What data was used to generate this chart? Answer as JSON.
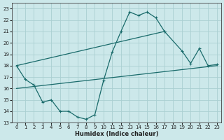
{
  "xlabel": "Humidex (Indice chaleur)",
  "bg_color": "#cce8ea",
  "grid_color": "#aacfd2",
  "line_color": "#1a6b6b",
  "xlim": [
    -0.5,
    23.5
  ],
  "ylim": [
    13,
    23.5
  ],
  "xticks": [
    0,
    1,
    2,
    3,
    4,
    5,
    6,
    7,
    8,
    9,
    10,
    11,
    12,
    13,
    14,
    15,
    16,
    17,
    18,
    19,
    20,
    21,
    22,
    23
  ],
  "yticks": [
    13,
    14,
    15,
    16,
    17,
    18,
    19,
    20,
    21,
    22,
    23
  ],
  "line1_x": [
    0,
    1,
    2,
    3,
    4,
    5,
    6,
    7,
    8,
    9,
    10,
    11,
    12,
    13,
    14,
    15,
    16,
    17
  ],
  "line1_y": [
    18.0,
    16.8,
    16.3,
    14.8,
    15.0,
    14.0,
    14.0,
    13.5,
    13.3,
    13.7,
    16.7,
    19.2,
    21.0,
    22.7,
    22.4,
    22.7,
    22.2,
    21.0
  ],
  "line2_x": [
    17,
    19,
    20,
    21,
    22,
    23
  ],
  "line2_y": [
    21.0,
    19.3,
    18.2,
    19.5,
    18.0,
    18.1
  ],
  "line3_x": [
    0,
    17
  ],
  "line3_y": [
    18.0,
    21.0
  ],
  "line4_x": [
    0,
    23
  ],
  "line4_y": [
    16.0,
    18.0
  ]
}
